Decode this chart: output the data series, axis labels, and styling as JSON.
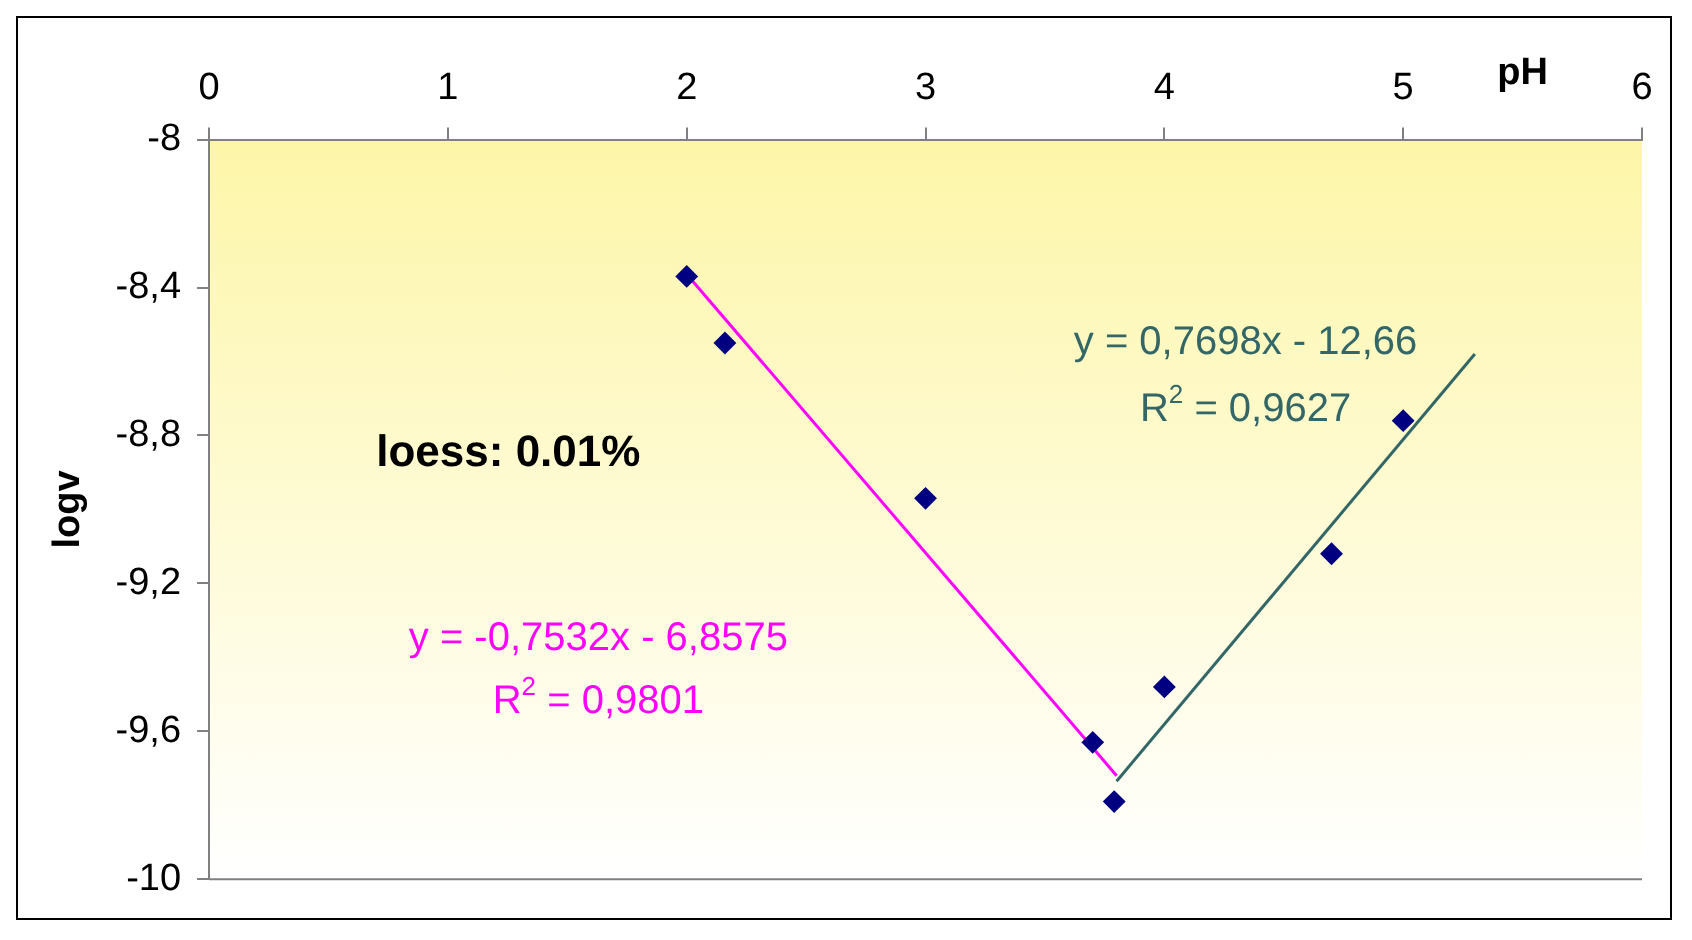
{
  "chart_data": {
    "type": "scatter",
    "xlabel": "pH",
    "ylabel": "logv",
    "xlim": [
      0,
      6
    ],
    "xticks": [
      0,
      1,
      2,
      3,
      4,
      5,
      6
    ],
    "ylim": [
      -10,
      -8
    ],
    "yticks": [
      -10,
      {
        "value": -9.6,
        "label": "-9,6"
      },
      {
        "value": -9.2,
        "label": "-9,2"
      },
      {
        "value": -8.8,
        "label": "-8,8"
      },
      {
        "value": -8.4,
        "label": "-8,4"
      },
      -8
    ],
    "grid": false,
    "legend": false,
    "series": [
      {
        "marker": "diamond",
        "color": "#000080",
        "x": [
          2.0,
          2.16,
          3.0,
          3.7,
          3.79,
          4.0,
          4.7,
          5.0
        ],
        "values": [
          -8.37,
          -8.55,
          -8.97,
          -9.63,
          -9.79,
          -9.48,
          -9.12,
          -8.76
        ]
      },
      {
        "type": "line",
        "color": "#ff00ff",
        "x": [
          2.0,
          3.8
        ],
        "values": [
          -8.364,
          -9.72
        ]
      },
      {
        "type": "line",
        "color": "#336666",
        "x": [
          3.8,
          5.3
        ],
        "values": [
          -9.735,
          -8.58
        ]
      }
    ],
    "annotations": [
      "loess: 0.01%",
      "y = -0,7532x - 6,8575",
      "R$^{2}$ = 0,9801",
      "y = 0,7698x - 12,66",
      "R$^{2}$ = 0,9627"
    ]
  }
}
